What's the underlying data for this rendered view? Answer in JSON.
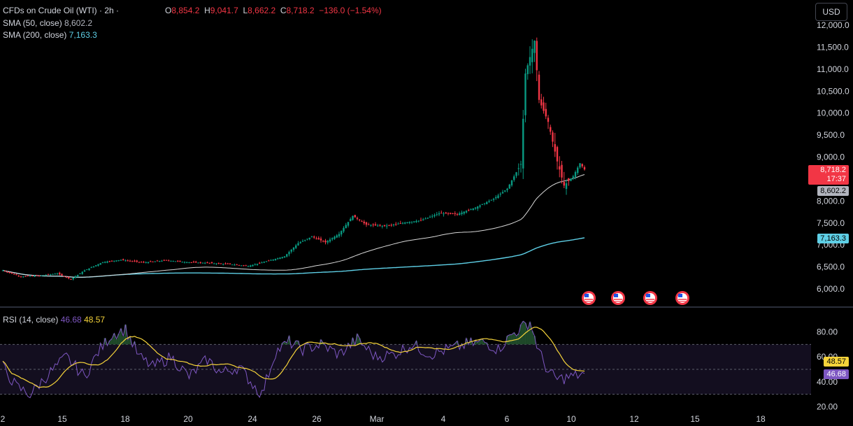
{
  "header": {
    "symbol": "CFDs on Crude Oil (WTI) · 2h ·",
    "ohlc": {
      "o_label": "O",
      "o": "8,854.2",
      "h_label": "H",
      "h": "9,041.7",
      "l_label": "L",
      "l": "8,662.2",
      "c_label": "C",
      "c": "8,718.2",
      "chg": "−136.0 (−1.54%)"
    },
    "sma50_label": "SMA (50, close)",
    "sma50_value": "8,602.2",
    "sma200_label": "SMA (200, close)",
    "sma200_value": "7,163.3",
    "currency": "USD"
  },
  "rsi_header": {
    "label": "RSI (14, close)",
    "value": "46.68",
    "ma_value": "48.57"
  },
  "price_tags": {
    "last": "8,718.2",
    "countdown": "17:37",
    "sma50": "8,602.2",
    "sma200": "7,163.3",
    "rsi": "46.68",
    "rsi_ma": "48.57"
  },
  "colors": {
    "up": "#089981",
    "down": "#f23645",
    "sma50": "#d8d8d8",
    "sma200": "#5ecfe6",
    "rsi": "#7e57c2",
    "rsi_ma": "#f5d33a"
  },
  "chart_data": [
    {
      "type": "candlestick",
      "title": "CFDs on Crude Oil (WTI) · 2h",
      "y_ticks": [
        6000,
        6500,
        7000,
        7500,
        8000,
        8500,
        9000,
        9500,
        10000,
        10500,
        11000,
        11500,
        12000
      ],
      "y_tick_labels": [
        "6,000.0",
        "6,500.0",
        "7,000.0",
        "7,500.0",
        "8,000.0",
        "8,500.0",
        "9,000.0",
        "9,500.0",
        "10,000.0",
        "10,500.0",
        "11,000.0",
        "11,500.0",
        "12,000.0"
      ],
      "ylim": [
        5800,
        12100
      ],
      "x_tick_labels": [
        "2",
        "15",
        "18",
        "20",
        "24",
        "26",
        "Mar",
        "4",
        "6",
        "10",
        "12",
        "15",
        "18"
      ],
      "close_anchors": [
        [
          0,
          6420
        ],
        [
          8,
          6280
        ],
        [
          16,
          6300
        ],
        [
          24,
          6350
        ],
        [
          30,
          6220
        ],
        [
          36,
          6420
        ],
        [
          44,
          6610
        ],
        [
          52,
          6660
        ],
        [
          62,
          6600
        ],
        [
          72,
          6650
        ],
        [
          80,
          6610
        ],
        [
          90,
          6590
        ],
        [
          100,
          6560
        ],
        [
          108,
          6520
        ],
        [
          114,
          6600
        ],
        [
          124,
          6740
        ],
        [
          130,
          7040
        ],
        [
          136,
          7190
        ],
        [
          142,
          7060
        ],
        [
          148,
          7250
        ],
        [
          154,
          7660
        ],
        [
          160,
          7460
        ],
        [
          168,
          7430
        ],
        [
          176,
          7500
        ],
        [
          184,
          7560
        ],
        [
          192,
          7720
        ],
        [
          200,
          7700
        ],
        [
          208,
          7850
        ],
        [
          216,
          8050
        ],
        [
          222,
          8280
        ],
        [
          228,
          8840
        ],
        [
          230,
          10900
        ],
        [
          234,
          11650
        ],
        [
          236,
          10300
        ],
        [
          240,
          9800
        ],
        [
          244,
          8900
        ],
        [
          247,
          8350
        ],
        [
          251,
          8560
        ],
        [
          254,
          8860
        ],
        [
          256,
          8718.2
        ]
      ],
      "sma50_last": 8602.2,
      "sma200_last": 7163.3,
      "series": [
        {
          "name": "SMA (50, close)"
        },
        {
          "name": "SMA (200, close)"
        }
      ],
      "event_markers": 4
    },
    {
      "type": "line",
      "title": "RSI (14, close)",
      "y_ticks": [
        20,
        40,
        60,
        80
      ],
      "y_tick_labels": [
        "20.00",
        "40.00",
        "60.00",
        "80.00"
      ],
      "ylim": [
        10,
        95
      ],
      "band": [
        30,
        70
      ],
      "midline": 50,
      "rsi_anchors": [
        [
          0,
          52
        ],
        [
          6,
          36
        ],
        [
          12,
          30
        ],
        [
          20,
          46
        ],
        [
          28,
          60
        ],
        [
          36,
          44
        ],
        [
          42,
          64
        ],
        [
          48,
          78
        ],
        [
          54,
          82
        ],
        [
          60,
          60
        ],
        [
          66,
          52
        ],
        [
          74,
          60
        ],
        [
          82,
          44
        ],
        [
          90,
          58
        ],
        [
          96,
          47
        ],
        [
          104,
          52
        ],
        [
          110,
          38
        ],
        [
          114,
          30
        ],
        [
          120,
          64
        ],
        [
          126,
          72
        ],
        [
          132,
          66
        ],
        [
          140,
          70
        ],
        [
          148,
          62
        ],
        [
          156,
          74
        ],
        [
          164,
          60
        ],
        [
          172,
          62
        ],
        [
          180,
          70
        ],
        [
          188,
          62
        ],
        [
          196,
          66
        ],
        [
          204,
          70
        ],
        [
          212,
          72
        ],
        [
          218,
          66
        ],
        [
          224,
          78
        ],
        [
          228,
          83
        ],
        [
          232,
          88
        ],
        [
          236,
          64
        ],
        [
          240,
          48
        ],
        [
          244,
          42
        ],
        [
          250,
          44
        ],
        [
          256,
          46.68
        ]
      ],
      "rsi_last": 46.68,
      "rsi_ma_last": 48.57
    }
  ]
}
